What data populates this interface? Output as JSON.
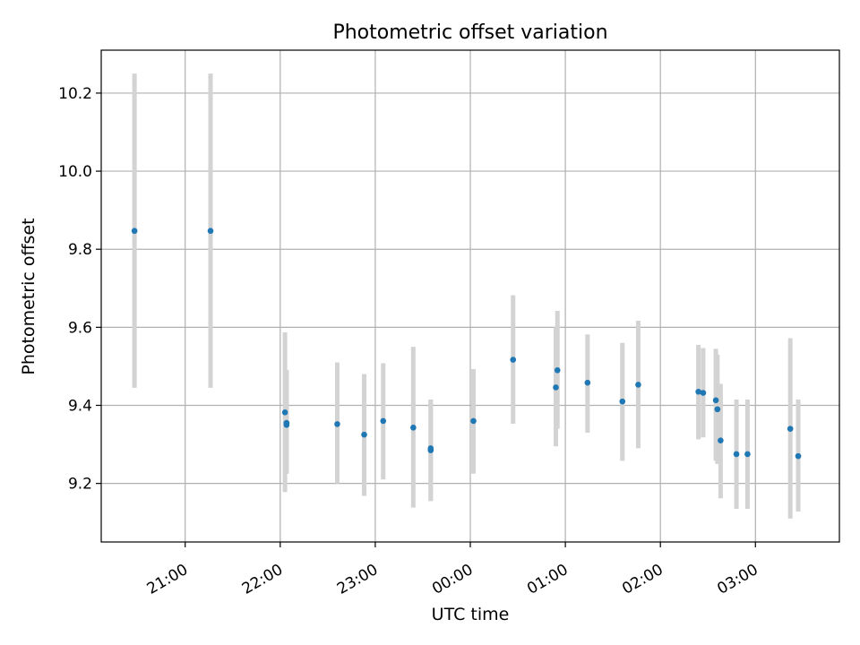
{
  "chart_data": {
    "type": "scatter",
    "title": "Photometric offset variation",
    "xlabel": "UTC time",
    "ylabel": "Photometric offset",
    "x_is_time": true,
    "xlim": [
      "20:07",
      "03:53"
    ],
    "ylim": [
      9.05,
      10.31
    ],
    "x_ticks": [
      "21:00",
      "22:00",
      "23:00",
      "00:00",
      "01:00",
      "02:00",
      "03:00"
    ],
    "y_ticks": [
      9.2,
      9.4,
      9.6,
      9.8,
      10.0,
      10.2
    ],
    "grid": true,
    "error_bar_color": "#d3d3d3",
    "marker_color": "#1f77b4",
    "points": [
      {
        "t": "20:28",
        "y": 9.847,
        "lo": 9.445,
        "hi": 10.25
      },
      {
        "t": "21:16",
        "y": 9.847,
        "lo": 9.445,
        "hi": 10.25
      },
      {
        "t": "22:03",
        "y": 9.382,
        "lo": 9.178,
        "hi": 9.587
      },
      {
        "t": "22:04",
        "y": 9.35,
        "lo": 9.225,
        "hi": 9.49
      },
      {
        "t": "22:04",
        "y": 9.355,
        "lo": 9.225,
        "hi": 9.49
      },
      {
        "t": "22:36",
        "y": 9.352,
        "lo": 9.2,
        "hi": 9.51
      },
      {
        "t": "22:53",
        "y": 9.325,
        "lo": 9.168,
        "hi": 9.48
      },
      {
        "t": "23:05",
        "y": 9.36,
        "lo": 9.21,
        "hi": 9.508
      },
      {
        "t": "23:24",
        "y": 9.343,
        "lo": 9.138,
        "hi": 9.55
      },
      {
        "t": "23:35",
        "y": 9.285,
        "lo": 9.155,
        "hi": 9.415
      },
      {
        "t": "23:35",
        "y": 9.29,
        "lo": 9.155,
        "hi": 9.415
      },
      {
        "t": "00:02",
        "y": 9.36,
        "lo": 9.225,
        "hi": 9.493
      },
      {
        "t": "00:27",
        "y": 9.517,
        "lo": 9.353,
        "hi": 9.682
      },
      {
        "t": "00:54",
        "y": 9.446,
        "lo": 9.295,
        "hi": 9.6
      },
      {
        "t": "00:55",
        "y": 9.49,
        "lo": 9.34,
        "hi": 9.642
      },
      {
        "t": "01:14",
        "y": 9.458,
        "lo": 9.33,
        "hi": 9.582
      },
      {
        "t": "01:36",
        "y": 9.41,
        "lo": 9.258,
        "hi": 9.56
      },
      {
        "t": "01:46",
        "y": 9.453,
        "lo": 9.29,
        "hi": 9.617
      },
      {
        "t": "02:24",
        "y": 9.435,
        "lo": 9.313,
        "hi": 9.555
      },
      {
        "t": "02:27",
        "y": 9.432,
        "lo": 9.318,
        "hi": 9.547
      },
      {
        "t": "02:35",
        "y": 9.413,
        "lo": 9.258,
        "hi": 9.545
      },
      {
        "t": "02:36",
        "y": 9.39,
        "lo": 9.25,
        "hi": 9.53
      },
      {
        "t": "02:38",
        "y": 9.31,
        "lo": 9.162,
        "hi": 9.455
      },
      {
        "t": "02:48",
        "y": 9.275,
        "lo": 9.135,
        "hi": 9.415
      },
      {
        "t": "02:55",
        "y": 9.275,
        "lo": 9.135,
        "hi": 9.415
      },
      {
        "t": "03:22",
        "y": 9.34,
        "lo": 9.11,
        "hi": 9.572
      },
      {
        "t": "03:27",
        "y": 9.27,
        "lo": 9.128,
        "hi": 9.415
      }
    ]
  }
}
